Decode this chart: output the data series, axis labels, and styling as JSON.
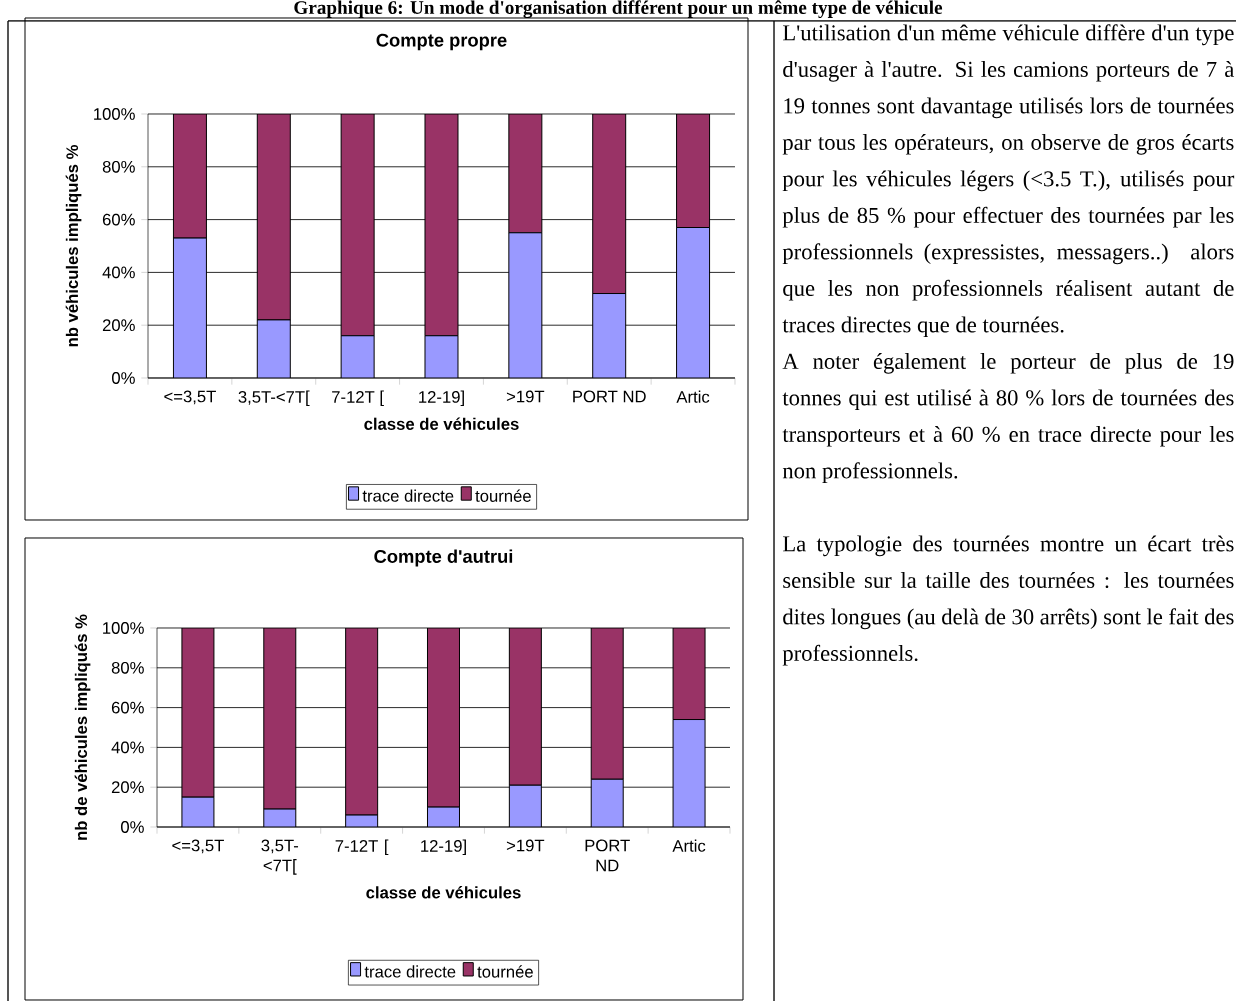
{
  "chart_data": [
    {
      "type": "bar",
      "stacked": true,
      "title": "Compte propre",
      "xlabel": "classe de véhicules",
      "ylabel": "nb véhicules impliqués %",
      "categories": [
        "<=3,5T",
        "3,5T-<7T[",
        "7-12T [",
        "12-19]",
        ">19T",
        "PORT ND",
        "Artic"
      ],
      "series": [
        {
          "name": "trace directe",
          "color": "#9999ff",
          "values": [
            53,
            22,
            16,
            16,
            55,
            32,
            57
          ]
        },
        {
          "name": "tournée",
          "color": "#993366",
          "values": [
            47,
            78,
            84,
            84,
            45,
            68,
            43
          ]
        }
      ],
      "ylim": [
        0,
        100
      ],
      "yticks": [
        {
          "value": 0,
          "label": "0%"
        },
        {
          "value": 20,
          "label": "20%"
        },
        {
          "value": 40,
          "label": "40%"
        },
        {
          "value": 60,
          "label": "60%"
        },
        {
          "value": 80,
          "label": "80%"
        },
        {
          "value": 100,
          "label": "100%"
        }
      ],
      "grid": "y",
      "legend": "bottom"
    },
    {
      "type": "bar",
      "stacked": true,
      "title": "Compte d'autrui",
      "xlabel": "classe de véhicules",
      "ylabel": "nb de véhicules impliqués %",
      "categories": [
        "<=3,5T",
        "3,5T-<7T[",
        "7-12T [",
        "12-19]",
        ">19T",
        "PORT ND",
        "Artic"
      ],
      "series": [
        {
          "name": "trace directe",
          "color": "#9999ff",
          "values": [
            15,
            9,
            6,
            10,
            21,
            24,
            54
          ]
        },
        {
          "name": "tournée",
          "color": "#993366",
          "values": [
            85,
            91,
            94,
            90,
            79,
            76,
            46
          ]
        }
      ],
      "ylim": [
        0,
        100
      ],
      "yticks": [
        {
          "value": 0,
          "label": "0%"
        },
        {
          "value": 20,
          "label": "20%"
        },
        {
          "value": 40,
          "label": "40%"
        },
        {
          "value": 60,
          "label": "60%"
        },
        {
          "value": 80,
          "label": "80%"
        },
        {
          "value": 100,
          "label": "100%"
        }
      ],
      "grid": "y",
      "legend": "bottom"
    },
    {
      "type": "other",
      "title": "Graphique 6: Un mode d'organisation différent pour un même type de véhicule",
      "annotations": [
        "L'utilisation d'un même véhicule diffère d'un type d'usager à l'autre. Si les camions porteurs de 7 à 19 tonnes sont davantage utilisés lors de tournées par tous les opérateurs, on observe de gros écarts pour les véhicules légers (<3.5 T.), utilisés pour plus de 85 % pour effectuer des tournées par les professionnels (expressistes, messagers..) alors que les non professionnels réalisent autant de traces directes que de tournées.",
        "A noter également le porteur de plus de 19 tonnes qui est utilisé à 80 % lors de tournées des transporteurs et à 60 % en trace directe pour les non professionnels.",
        "La typologie des tournées montre un écart très sensible sur la taille des tournées : les tournées dites longues (au delà de 30 arrêts) sont le fait des professionnels."
      ]
    }
  ]
}
